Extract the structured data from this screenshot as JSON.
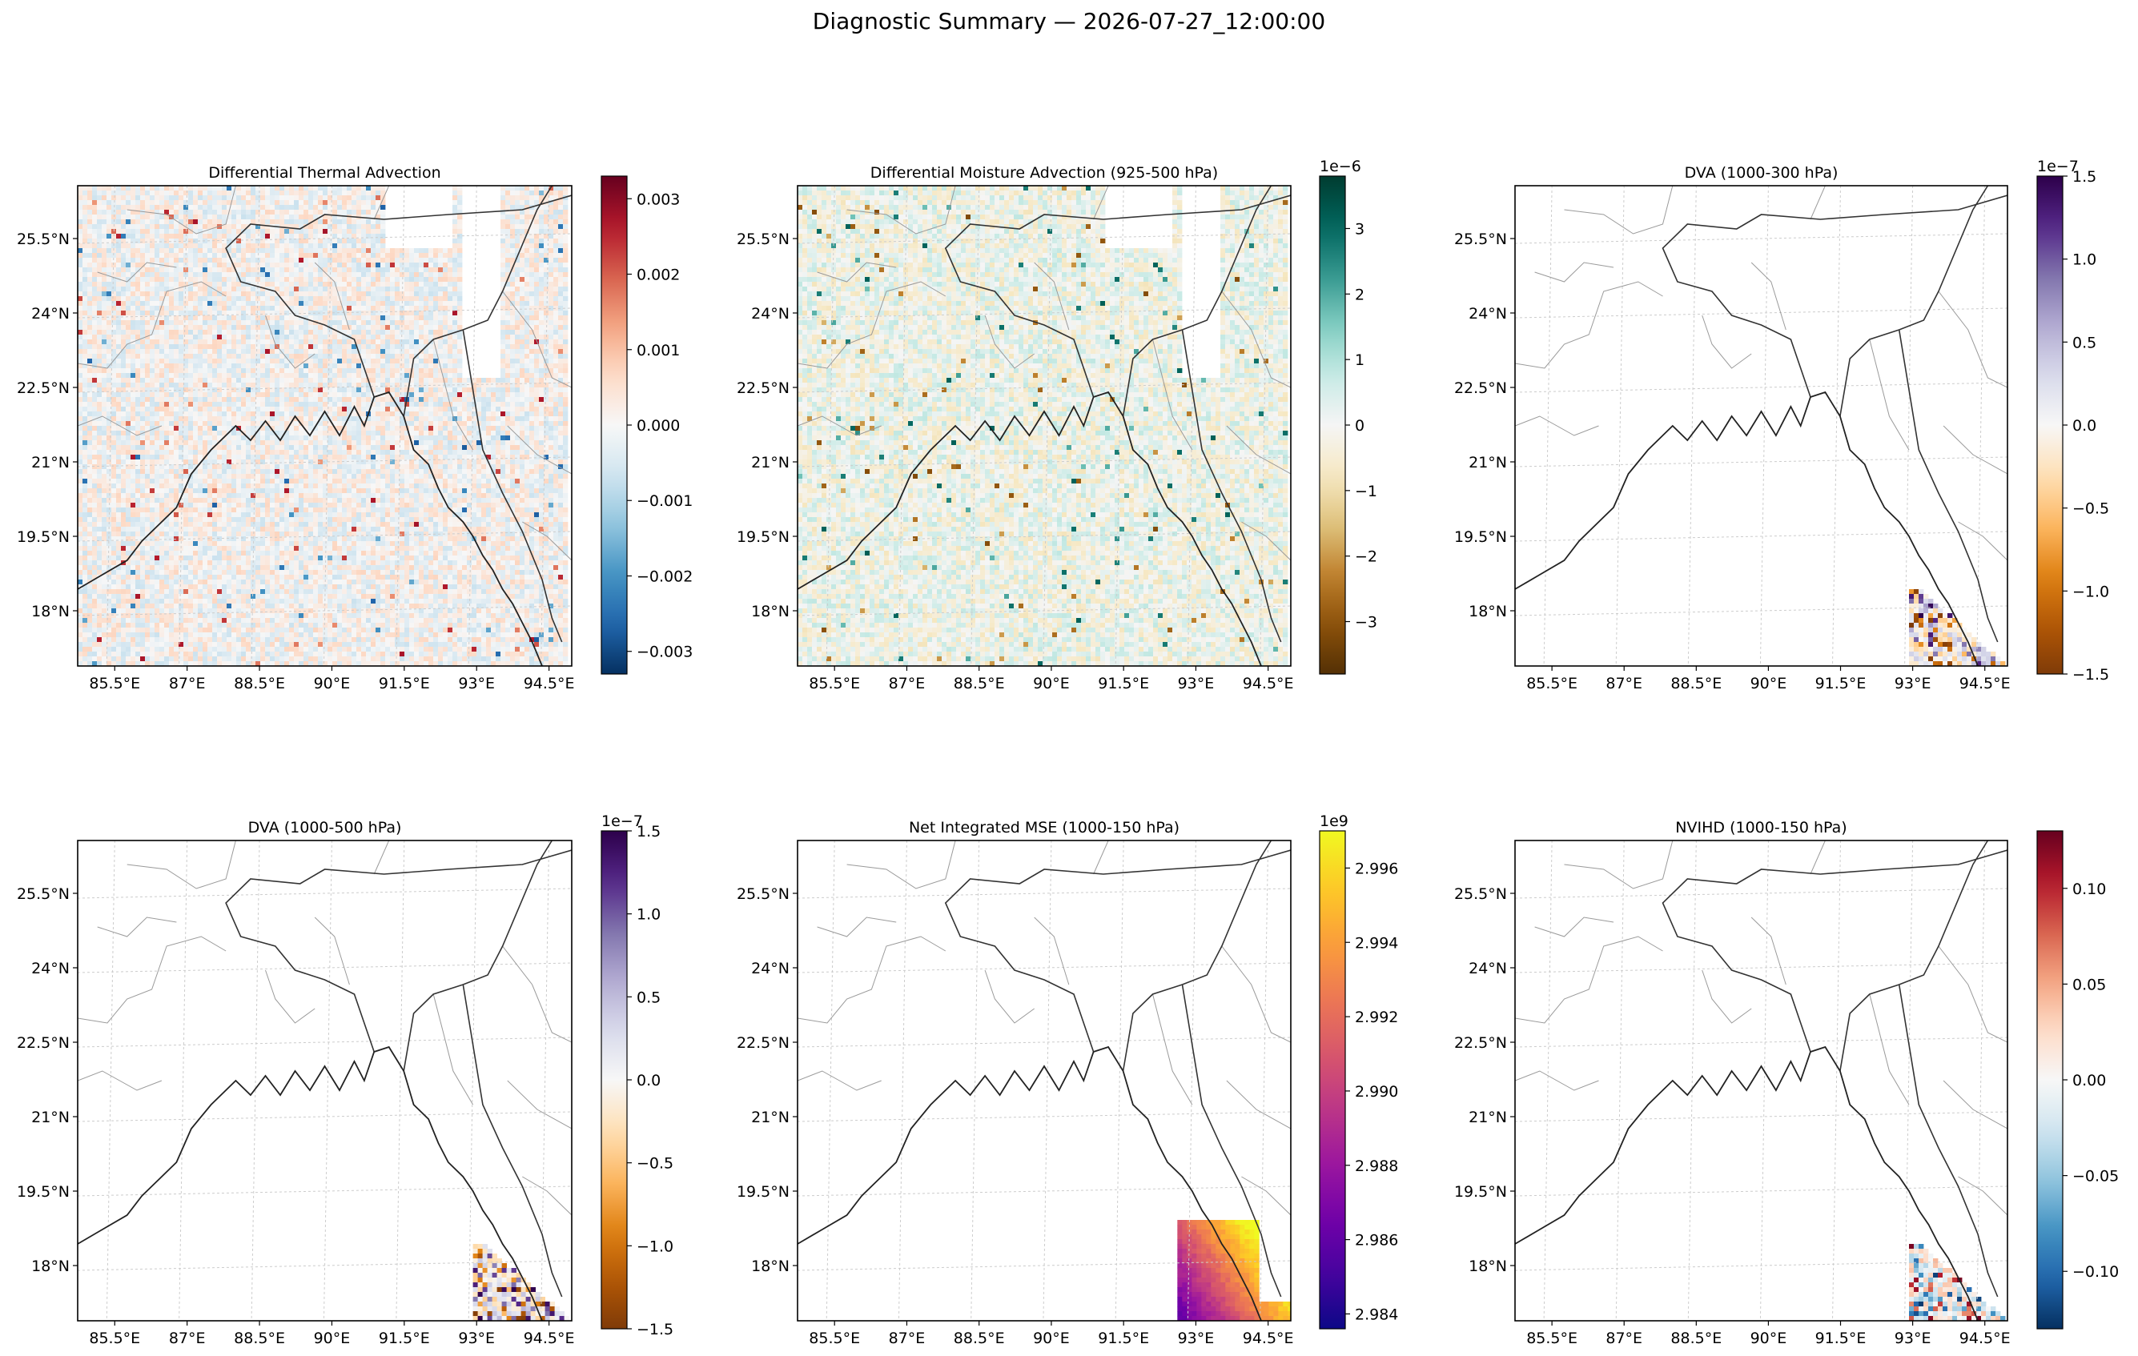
{
  "figure": {
    "title": "Diagnostic Summary — 2026-07-27_12:00:00"
  },
  "map": {
    "lon_ticks": [
      "85.5°E",
      "87°E",
      "88.5°E",
      "90°E",
      "91.5°E",
      "93°E",
      "94.5°E"
    ],
    "lat_ticks": [
      "25.5°N",
      "24°N",
      "22.5°N",
      "21°N",
      "19.5°N",
      "18°N"
    ]
  },
  "chart_data": [
    {
      "type": "heatmap",
      "title": "Differential Thermal Advection",
      "colormap": "RdBu_r",
      "field_pattern": "noise-wide",
      "colorbar": {
        "ticks": [
          0.003,
          0.002,
          0.001,
          0.0,
          -0.001,
          -0.002,
          -0.003
        ],
        "tick_labels": [
          "0.003",
          "0.002",
          "0.001",
          "0.000",
          "−0.001",
          "−0.002",
          "−0.003"
        ],
        "offset_label": "",
        "vmin": -0.0033,
        "vmax": 0.0033
      }
    },
    {
      "type": "heatmap",
      "title": "Differential Moisture Advection (925-500 hPa)",
      "colormap": "BrBG",
      "field_pattern": "noise-wide",
      "colorbar": {
        "ticks": [
          3,
          2,
          1,
          0,
          -1,
          -2,
          -3
        ],
        "tick_labels": [
          "3",
          "2",
          "1",
          "0",
          "−1",
          "−2",
          "−3"
        ],
        "offset_label": "1e−6",
        "vmin": -3.8,
        "vmax": 3.8
      }
    },
    {
      "type": "heatmap",
      "title": "DVA (1000-300 hPa)",
      "colormap": "PuOr",
      "field_pattern": "corner-noise",
      "colorbar": {
        "ticks": [
          1.5,
          1.0,
          0.5,
          0.0,
          -0.5,
          -1.0,
          -1.5
        ],
        "tick_labels": [
          "1.5",
          "1.0",
          "0.5",
          "0.0",
          "−0.5",
          "−1.0",
          "−1.5"
        ],
        "offset_label": "1e−7",
        "vmin": -1.5,
        "vmax": 1.5
      }
    },
    {
      "type": "heatmap",
      "title": "DVA (1000-500 hPa)",
      "colormap": "PuOr",
      "field_pattern": "corner-noise",
      "colorbar": {
        "ticks": [
          1.5,
          1.0,
          0.5,
          0.0,
          -0.5,
          -1.0,
          -1.5
        ],
        "tick_labels": [
          "1.5",
          "1.0",
          "0.5",
          "0.0",
          "−0.5",
          "−1.0",
          "−1.5"
        ],
        "offset_label": "1e−7",
        "vmin": -1.5,
        "vmax": 1.5
      }
    },
    {
      "type": "heatmap",
      "title": "Net Integrated MSE (1000-150 hPa)",
      "colormap": "plasma",
      "field_pattern": "corner-smooth",
      "colorbar": {
        "ticks": [
          2.996,
          2.994,
          2.992,
          2.99,
          2.988,
          2.986,
          2.984
        ],
        "tick_labels": [
          "2.996",
          "2.994",
          "2.992",
          "2.990",
          "2.988",
          "2.986",
          "2.984"
        ],
        "offset_label": "1e9",
        "vmin": 2.9836,
        "vmax": 2.997
      }
    },
    {
      "type": "heatmap",
      "title": "NVIHD (1000-150 hPa)",
      "colormap": "RdBu_r",
      "field_pattern": "corner-noise",
      "colorbar": {
        "ticks": [
          0.1,
          0.05,
          0.0,
          -0.05,
          -0.1
        ],
        "tick_labels": [
          "0.10",
          "0.05",
          "0.00",
          "−0.05",
          "−0.10"
        ],
        "offset_label": "",
        "vmin": -0.13,
        "vmax": 0.13
      }
    }
  ]
}
